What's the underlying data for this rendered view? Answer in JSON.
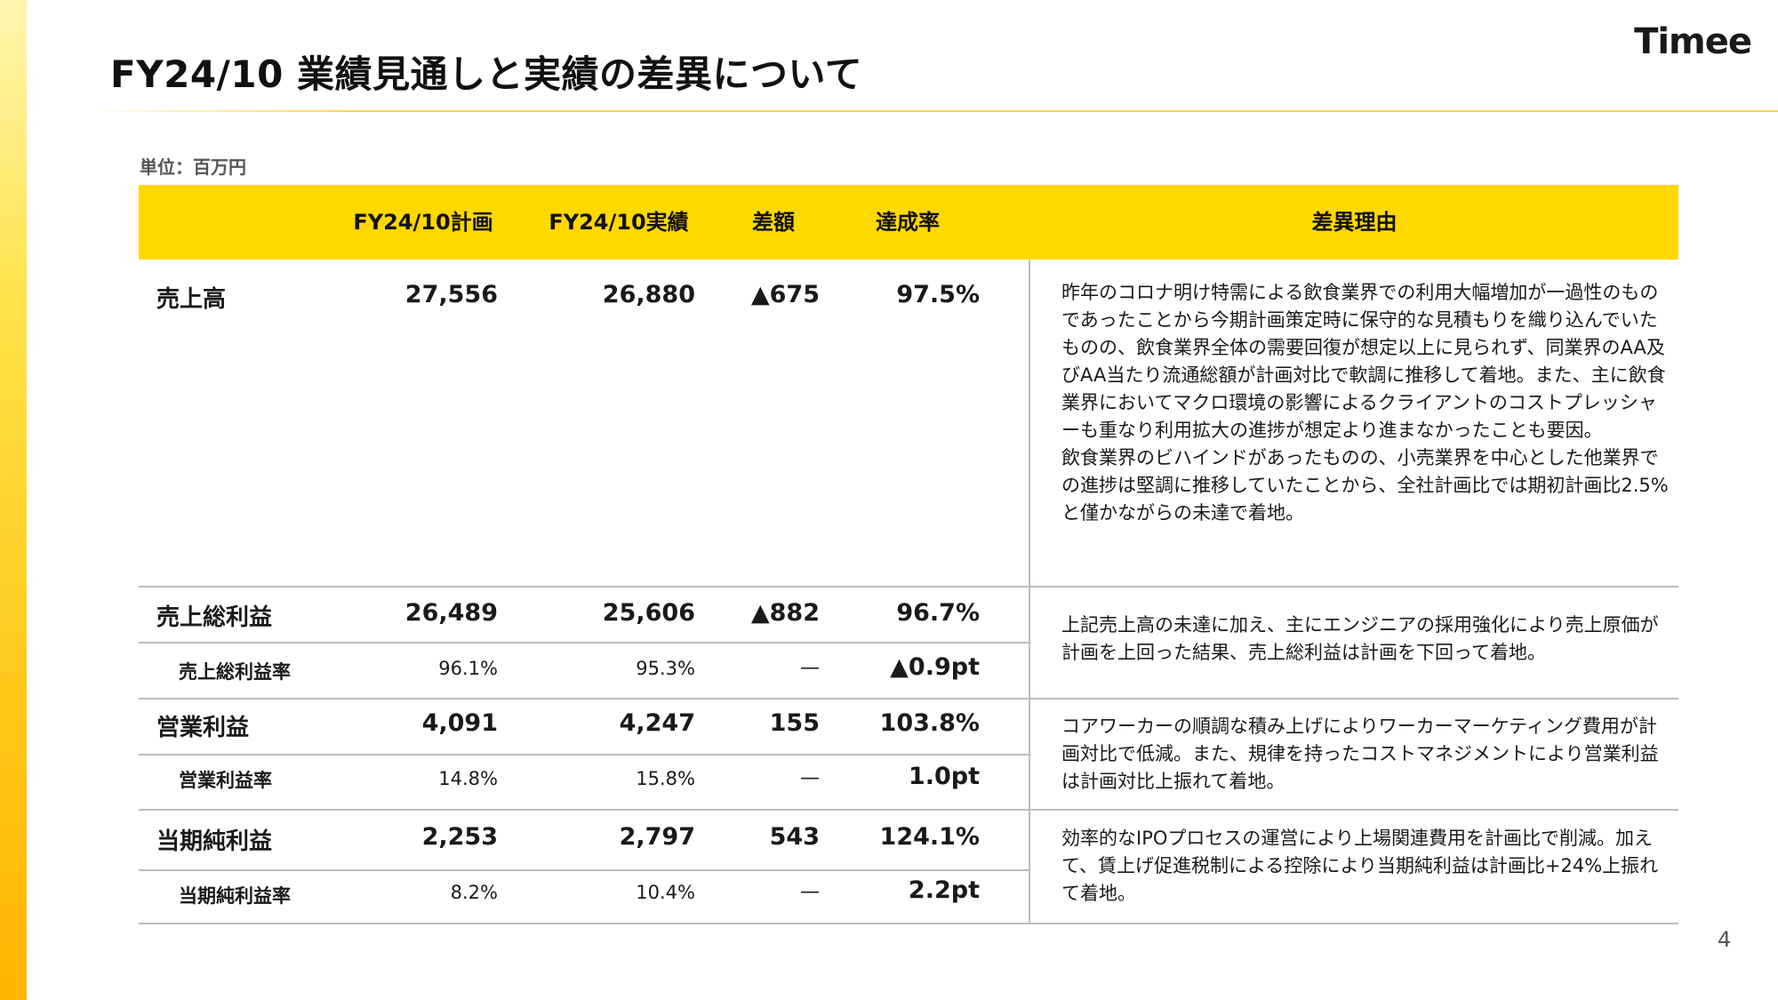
{
  "header": {
    "title": "FY24/10 業績見通しと実績の差異について",
    "logo": "Timee"
  },
  "unit": "単位：百万円",
  "table": {
    "columns": [
      "",
      "FY24/10計画",
      "FY24/10実績",
      "差額",
      "達成率",
      "差異理由"
    ],
    "rows": {
      "sales": {
        "label": "売上高",
        "plan": "27,556",
        "actual": "26,880",
        "diff": "▲675",
        "rate": "97.5%"
      },
      "gross_profit": {
        "label": "売上総利益",
        "plan": "26,489",
        "actual": "25,606",
        "diff": "▲882",
        "rate": "96.7%"
      },
      "gross_margin": {
        "label": "売上総利益率",
        "plan": "96.1%",
        "actual": "95.3%",
        "diff": "—",
        "rate": "▲0.9pt"
      },
      "operating_profit": {
        "label": "営業利益",
        "plan": "4,091",
        "actual": "4,247",
        "diff": "155",
        "rate": "103.8%"
      },
      "operating_margin": {
        "label": "営業利益率",
        "plan": "14.8%",
        "actual": "15.8%",
        "diff": "—",
        "rate": "1.0pt"
      },
      "net_income": {
        "label": "当期純利益",
        "plan": "2,253",
        "actual": "2,797",
        "diff": "543",
        "rate": "124.1%"
      },
      "net_margin": {
        "label": "当期純利益率",
        "plan": "8.2%",
        "actual": "10.4%",
        "diff": "—",
        "rate": "2.2pt"
      }
    },
    "reasons": {
      "sales_1": "昨年のコロナ明け特需による飲食業界での利用大幅増加が一過性のものであったことから今期計画策定時に保守的な見積もりを織り込んでいたものの、飲食業界全体の需要回復が想定以上に見られず、同業界のAA及びAA当たり流通総額が計画対比で軟調に推移して着地。また、主に飲食業界においてマクロ環境の影響によるクライアントのコストプレッシャーも重なり利用拡大の進捗が想定より進まなかったことも要因。",
      "sales_2": "飲食業界のビハインドがあったものの、小売業界を中心とした他業界での進捗は堅調に推移していたことから、全社計画比では期初計画比2.5%と僅かながらの未達で着地。",
      "gross_profit": "上記売上高の未達に加え、主にエンジニアの採用強化により売上原価が計画を上回った結果、売上総利益は計画を下回って着地。",
      "operating_profit": "コアワーカーの順調な積み上げによりワーカーマーケティング費用が計画対比で低減。また、規律を持ったコストマネジメントにより営業利益は計画対比上振れて着地。",
      "net_income": "効率的なIPOプロセスの運営により上場関連費用を計画比で削減。加えて、賃上げ促進税制による控除により当期純利益は計画比+24%上振れて着地。"
    }
  },
  "page_number": "4",
  "colors": {
    "accent": "#ffd800",
    "side_bar": "#ffc81a",
    "rule": "#bdbdbd"
  }
}
